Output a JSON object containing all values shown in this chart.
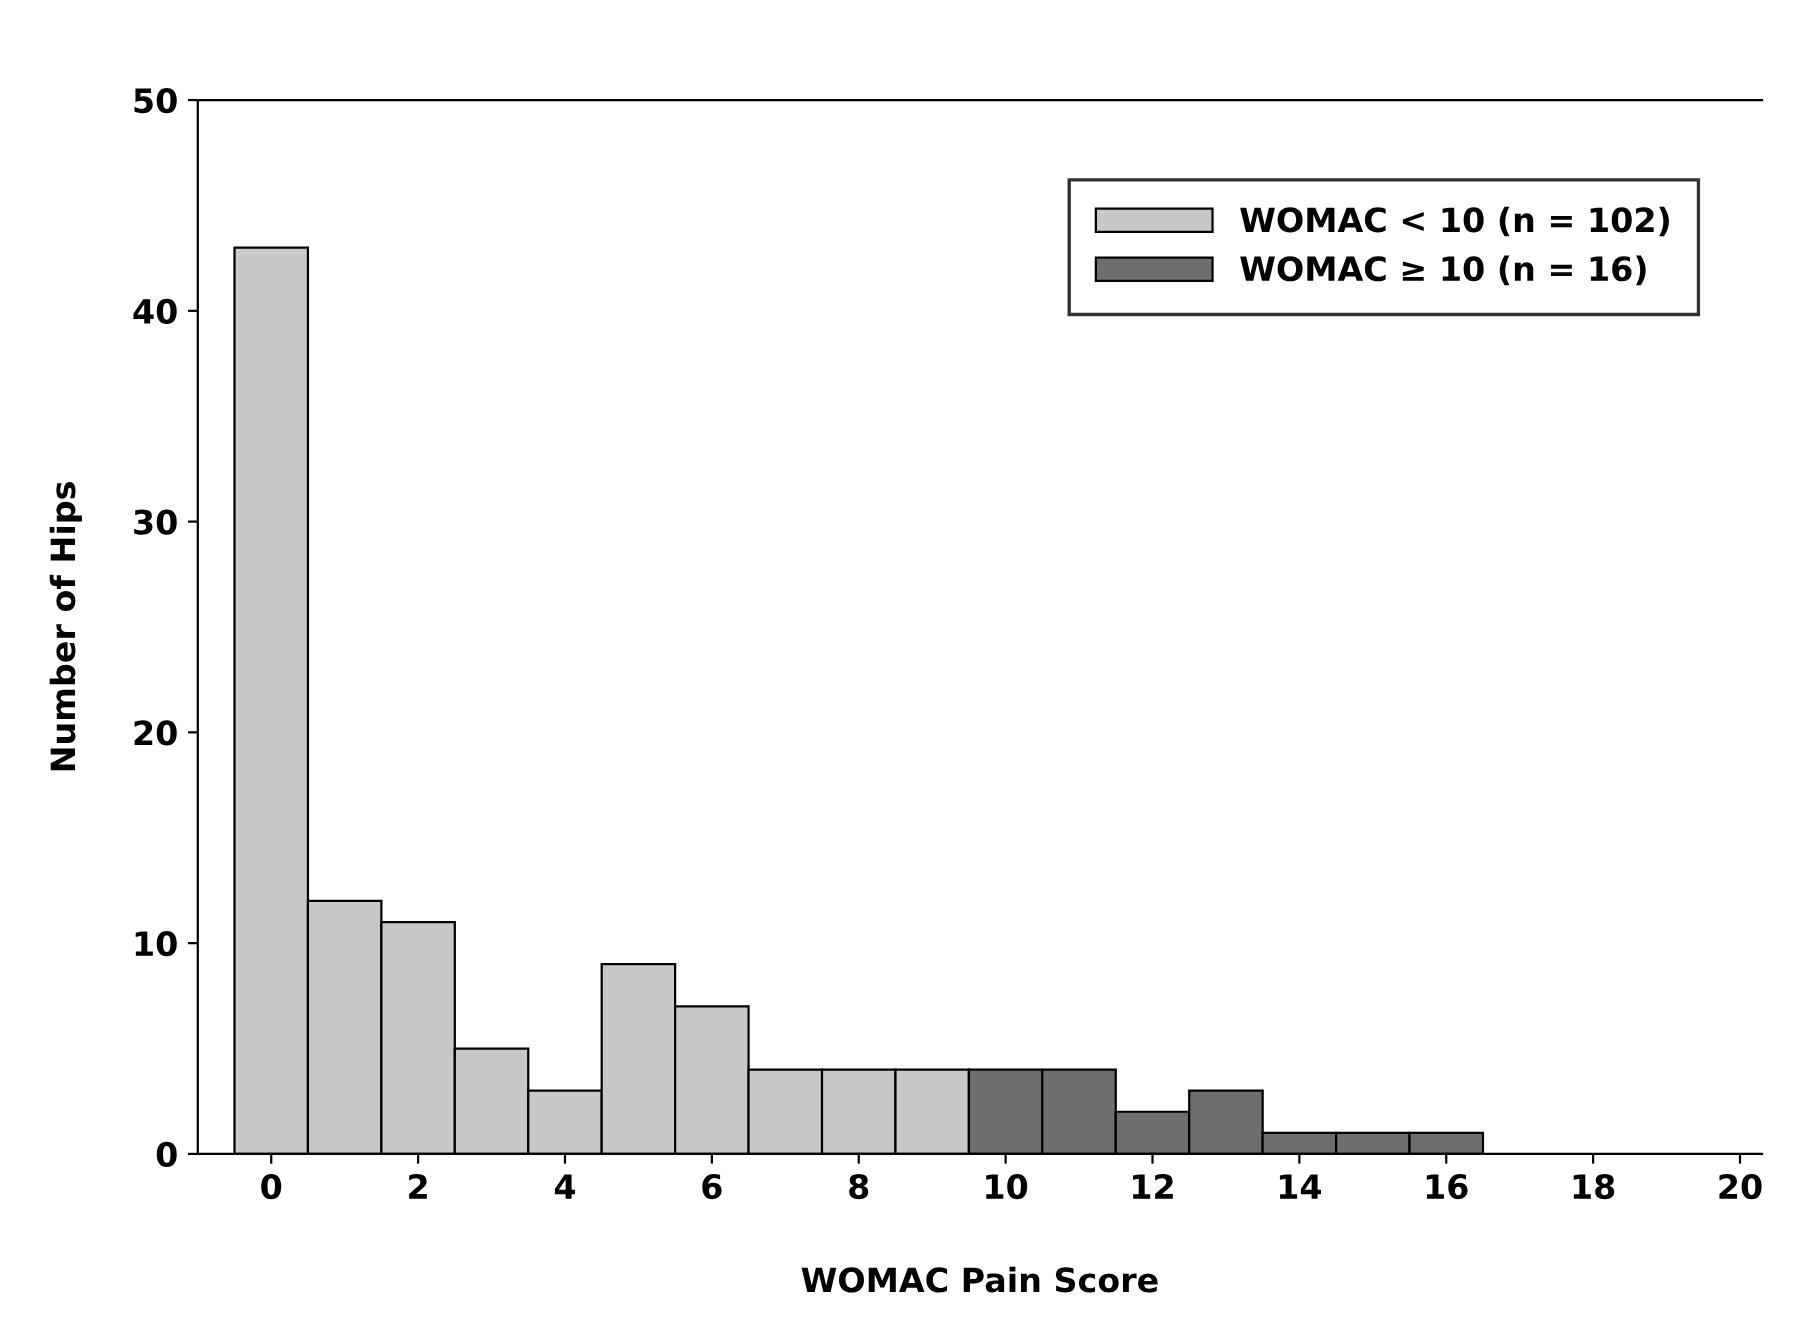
{
  "chart_data": {
    "type": "histogram",
    "xlabel": "WOMAC Pain Score",
    "ylabel": "Number of Hips",
    "bins": [
      -0.5,
      0.5,
      1.5,
      2.5,
      3.5,
      4.5,
      5.5,
      6.5,
      7.5,
      8.5,
      9.5,
      10.5,
      11.5,
      12.5,
      13.5,
      14.5,
      15.5,
      16.5
    ],
    "series": [
      {
        "name": "WOMAC < 10 (n = 102)",
        "color": "#c8c8c8",
        "values": [
          43,
          12,
          11,
          5,
          3,
          9,
          7,
          4,
          4,
          4,
          null,
          null,
          null,
          null,
          null,
          null,
          null
        ]
      },
      {
        "name": "WOMAC ≥ 10 (n = 16)",
        "color": "#6e6e6e",
        "values": [
          null,
          null,
          null,
          null,
          null,
          null,
          null,
          null,
          null,
          null,
          4,
          4,
          2,
          3,
          1,
          1,
          1
        ]
      }
    ],
    "xlim": [
      -1,
      20.3
    ],
    "xticks": [
      0,
      2,
      4,
      6,
      8,
      10,
      12,
      14,
      16,
      18,
      20
    ],
    "ylim": [
      0,
      50
    ],
    "yticks": [
      0,
      10,
      20,
      30,
      40,
      50
    ],
    "grid": false,
    "legend": "top right"
  }
}
